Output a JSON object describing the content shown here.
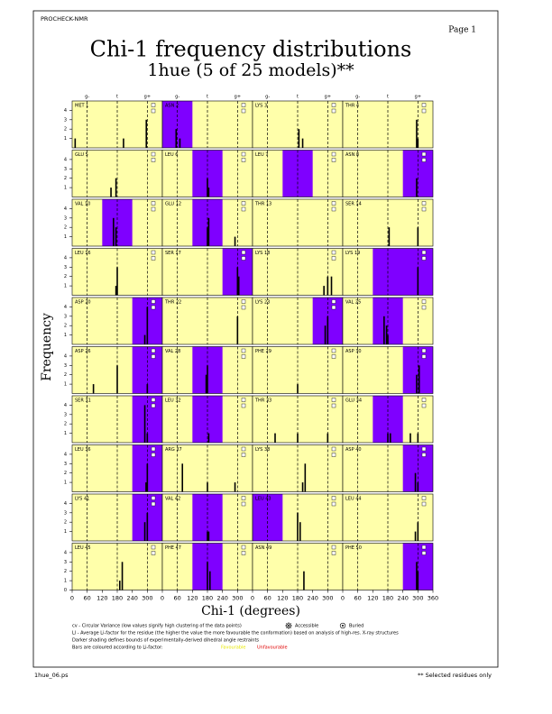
{
  "header": {
    "program": "PROCHECK-NMR",
    "page": "Page 1"
  },
  "chart_data": {
    "type": "histogram-grid",
    "title": "Chi-1 frequency distributions",
    "subtitle": "1hue (5 of 25 models)**",
    "xlabel": "Chi-1 (degrees)",
    "ylabel": "Frequency",
    "xlim": [
      0,
      360
    ],
    "xticks": [
      0,
      60,
      120,
      180,
      240,
      300,
      360
    ],
    "ylim": [
      0,
      5
    ],
    "yticks": [
      0,
      1,
      2,
      3,
      4
    ],
    "conformations": {
      "labels": [
        "g-",
        "t",
        "g+"
      ],
      "positions": [
        60,
        180,
        300
      ]
    },
    "columns": 4,
    "panel_color": "#ffffaa",
    "shade_color": "#7f00ff",
    "bar_color": "#000000",
    "panels": [
      {
        "label": "MET 1",
        "shade": null,
        "x": [
          12,
          205,
          296
        ],
        "counts": [
          1,
          1,
          3
        ]
      },
      {
        "label": "ASN 2",
        "shade": [
          0,
          120
        ],
        "x": [
          55,
          70
        ],
        "counts": [
          2,
          1
        ]
      },
      {
        "label": "LYS 3",
        "shade": null,
        "x": [
          185,
          200
        ],
        "counts": [
          2,
          1
        ]
      },
      {
        "label": "THR 4",
        "shade": null,
        "x": [
          295,
          300
        ],
        "counts": [
          3,
          1
        ]
      },
      {
        "label": "GLU 5",
        "shade": null,
        "x": [
          155,
          175
        ],
        "counts": [
          1,
          2
        ]
      },
      {
        "label": "LEU 6",
        "shade": [
          120,
          240
        ],
        "x": [
          180,
          185
        ],
        "counts": [
          2,
          1
        ]
      },
      {
        "label": "LEU 7",
        "shade": [
          120,
          240
        ],
        "x": [],
        "counts": []
      },
      {
        "label": "ASN 8",
        "shade": [
          240,
          360
        ],
        "x": [
          295
        ],
        "counts": [
          2
        ]
      },
      {
        "label": "VAL 10",
        "shade": [
          120,
          240
        ],
        "x": [
          165,
          175
        ],
        "counts": [
          3,
          2
        ]
      },
      {
        "label": "GLU 12",
        "shade": [
          120,
          240
        ],
        "x": [
          180,
          185,
          290
        ],
        "counts": [
          2,
          3,
          1
        ]
      },
      {
        "label": "THR 13",
        "shade": null,
        "x": [],
        "counts": []
      },
      {
        "label": "SER 14",
        "shade": null,
        "x": [
          185,
          300
        ],
        "counts": [
          2,
          2
        ]
      },
      {
        "label": "LEU 16",
        "shade": null,
        "x": [
          175,
          180
        ],
        "counts": [
          1,
          3
        ]
      },
      {
        "label": "SER 17",
        "shade": [
          240,
          360
        ],
        "x": [
          300,
          305
        ],
        "counts": [
          3,
          2
        ]
      },
      {
        "label": "LYS 18",
        "shade": null,
        "x": [
          285,
          300,
          315
        ],
        "counts": [
          1,
          2,
          2
        ]
      },
      {
        "label": "LYS 19",
        "shade": [
          120,
          360
        ],
        "x": [
          300
        ],
        "counts": [
          3
        ]
      },
      {
        "label": "ASP 20",
        "shade": [
          240,
          360
        ],
        "x": [
          290,
          300
        ],
        "counts": [
          1,
          4
        ]
      },
      {
        "label": "THR 22",
        "shade": null,
        "x": [
          300
        ],
        "counts": [
          3
        ]
      },
      {
        "label": "LYS 23",
        "shade": [
          240,
          360
        ],
        "x": [
          290,
          300
        ],
        "counts": [
          2,
          3
        ]
      },
      {
        "label": "VAL 25",
        "shade": [
          120,
          240
        ],
        "x": [
          165,
          175,
          180
        ],
        "counts": [
          3,
          2,
          1
        ]
      },
      {
        "label": "ASP 26",
        "shade": [
          240,
          360
        ],
        "x": [
          85,
          180,
          300
        ],
        "counts": [
          1,
          3,
          1
        ]
      },
      {
        "label": "VAL 28",
        "shade": [
          120,
          240
        ],
        "x": [
          175,
          180
        ],
        "counts": [
          2,
          3
        ]
      },
      {
        "label": "PHE 29",
        "shade": null,
        "x": [
          180
        ],
        "counts": [
          1
        ]
      },
      {
        "label": "ASP 30",
        "shade": [
          240,
          360
        ],
        "x": [
          295,
          305
        ],
        "counts": [
          2,
          3
        ]
      },
      {
        "label": "SER 31",
        "shade": [
          240,
          360
        ],
        "x": [
          290,
          300
        ],
        "counts": [
          4,
          1
        ]
      },
      {
        "label": "LEU 32",
        "shade": [
          120,
          240
        ],
        "x": [
          185
        ],
        "counts": [
          1
        ]
      },
      {
        "label": "THR 33",
        "shade": null,
        "x": [
          90,
          180,
          300
        ],
        "counts": [
          1,
          1,
          1
        ]
      },
      {
        "label": "GLU 34",
        "shade": [
          120,
          240
        ],
        "x": [
          180,
          190,
          270,
          300
        ],
        "counts": [
          1,
          1,
          1,
          1
        ]
      },
      {
        "label": "LEU 36",
        "shade": [
          240,
          360
        ],
        "x": [
          295,
          300
        ],
        "counts": [
          1,
          3
        ]
      },
      {
        "label": "ARG 37",
        "shade": null,
        "x": [
          80,
          180,
          290
        ],
        "counts": [
          3,
          1,
          1
        ]
      },
      {
        "label": "LYS 38",
        "shade": null,
        "x": [
          200,
          210
        ],
        "counts": [
          1,
          3
        ]
      },
      {
        "label": "ASP 40",
        "shade": [
          240,
          360
        ],
        "x": [
          290,
          300
        ],
        "counts": [
          2,
          1
        ]
      },
      {
        "label": "LYS 41",
        "shade": [
          240,
          360
        ],
        "x": [
          290,
          300
        ],
        "counts": [
          2,
          3
        ]
      },
      {
        "label": "VAL 42",
        "shade": [
          120,
          240
        ],
        "x": [
          180,
          185
        ],
        "counts": [
          1,
          1
        ]
      },
      {
        "label": "LEU 43",
        "shade": [
          0,
          120
        ],
        "x": [
          180,
          190
        ],
        "counts": [
          3,
          2
        ]
      },
      {
        "label": "LEU 44",
        "shade": null,
        "x": [
          290,
          300
        ],
        "counts": [
          1,
          2
        ]
      },
      {
        "label": "LEU 45",
        "shade": null,
        "x": [
          190,
          200
        ],
        "counts": [
          1,
          3
        ]
      },
      {
        "label": "PHE 47",
        "shade": [
          120,
          240
        ],
        "x": [
          180,
          190
        ],
        "counts": [
          3,
          2
        ]
      },
      {
        "label": "ASN 49",
        "shade": null,
        "x": [
          205
        ],
        "counts": [
          2
        ]
      },
      {
        "label": "PHE 50",
        "shade": [
          240,
          360
        ],
        "x": [
          295,
          300
        ],
        "counts": [
          3,
          2
        ]
      }
    ]
  },
  "legend": {
    "cv": "cv - Circular Variance (low values signify high clustering of the data points)",
    "ll": "Ll - Average Li-factor for the residue (the higher the value the more favourable the conformation) based on analysis of high-res. X-ray structures",
    "shading": "Darker shading defines bounds of experimentally-derived dihedral angle restraints",
    "bars": "Bars are coloured according to Li-factor:",
    "favourable": "Favourable",
    "unfavourable": "Unfavourable",
    "accessible": "Accessible",
    "buried": "Buried"
  },
  "footer": {
    "file": "1hue_06.ps",
    "note": "** Selected residues only"
  }
}
